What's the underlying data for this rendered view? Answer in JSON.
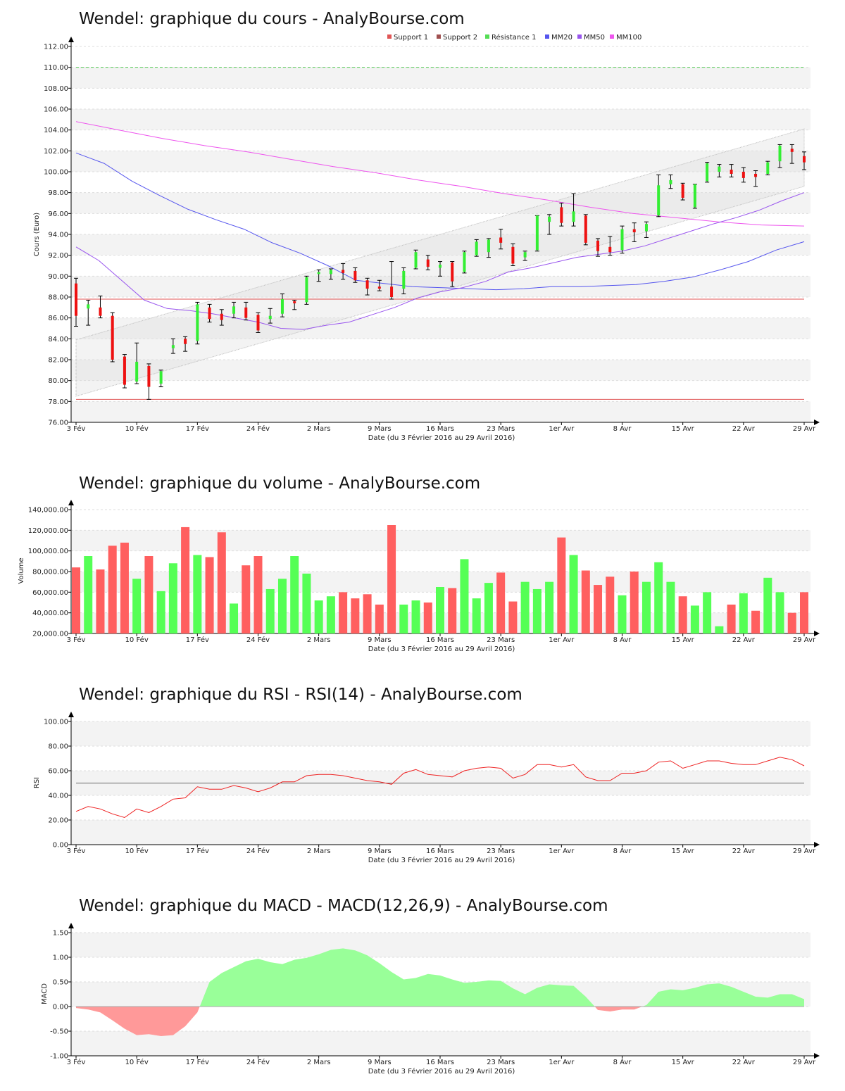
{
  "charts": {
    "price": {
      "title": "Wendel: graphique du cours - AnalyBourse.com",
      "ylabel": "Cours (Euro)",
      "xlabel": "Date (du 3 Février 2016 au 29 Avril 2016)"
    },
    "volume": {
      "title": "Wendel: graphique du volume - AnalyBourse.com",
      "ylabel": "Volume",
      "xlabel": "Date (du 3 Février 2016 au 29 Avril 2016)"
    },
    "rsi": {
      "title": "Wendel: graphique du RSI - RSI(14) - AnalyBourse.com",
      "ylabel": "RSI",
      "xlabel": "Date (du 3 Février 2016 au 29 Avril 2016)"
    },
    "macd": {
      "title": "Wendel: graphique du MACD - MACD(12,26,9) - AnalyBourse.com",
      "ylabel": "MACD",
      "xlabel": "Date (du 3 Février 2016 au 29 Avril 2016)"
    }
  },
  "legend": [
    {
      "label": "Support 1",
      "color": "#e05555"
    },
    {
      "label": "Support 2",
      "color": "#a05050"
    },
    {
      "label": "Résistance 1",
      "color": "#55dd55"
    },
    {
      "label": "MM20",
      "color": "#5555ee"
    },
    {
      "label": "MM50",
      "color": "#9955ee"
    },
    {
      "label": "MM100",
      "color": "#ee55ee"
    }
  ],
  "chart_data": [
    {
      "type": "candlestick",
      "x_ticks": [
        "3 Fév",
        "10 Fév",
        "17 Fév",
        "24 Fév",
        "2 Mars",
        "9 Mars",
        "16 Mars",
        "23 Mars",
        "1er Avr",
        "8 Avr",
        "15 Avr",
        "22 Avr",
        "29 Avr"
      ],
      "y_ticks": [
        "76.00",
        "78.00",
        "80.00",
        "82.00",
        "84.00",
        "86.00",
        "88.00",
        "90.00",
        "92.00",
        "94.00",
        "96.00",
        "98.00",
        "100.00",
        "102.00",
        "104.00",
        "106.00",
        "108.00",
        "110.00",
        "112.00"
      ],
      "ylim": [
        76,
        112
      ],
      "colors": {
        "up": "#33ee33",
        "down": "#ee1111"
      },
      "candles": [
        {
          "o": 89.3,
          "c": 86.2,
          "h": 89.8,
          "l": 85.2
        },
        {
          "o": 86.9,
          "c": 87.3,
          "h": 87.7,
          "l": 85.3
        },
        {
          "o": 87.0,
          "c": 86.2,
          "h": 88.1,
          "l": 86.0
        },
        {
          "o": 86.2,
          "c": 82.0,
          "h": 86.5,
          "l": 81.8
        },
        {
          "o": 82.3,
          "c": 79.6,
          "h": 82.5,
          "l": 79.3
        },
        {
          "o": 79.9,
          "c": 81.8,
          "h": 83.6,
          "l": 79.7
        },
        {
          "o": 81.4,
          "c": 79.4,
          "h": 81.6,
          "l": 78.2
        },
        {
          "o": 79.7,
          "c": 80.9,
          "h": 81.0,
          "l": 79.4
        },
        {
          "o": 83.1,
          "c": 83.4,
          "h": 84.0,
          "l": 82.6
        },
        {
          "o": 84.0,
          "c": 83.5,
          "h": 84.2,
          "l": 82.8
        },
        {
          "o": 83.8,
          "c": 87.3,
          "h": 87.5,
          "l": 83.5
        },
        {
          "o": 87.0,
          "c": 85.9,
          "h": 87.3,
          "l": 85.6
        },
        {
          "o": 86.4,
          "c": 85.8,
          "h": 86.8,
          "l": 85.3
        },
        {
          "o": 86.4,
          "c": 87.1,
          "h": 87.5,
          "l": 86.0
        },
        {
          "o": 87.0,
          "c": 86.0,
          "h": 87.5,
          "l": 85.8
        },
        {
          "o": 86.3,
          "c": 84.8,
          "h": 86.5,
          "l": 84.6
        },
        {
          "o": 85.9,
          "c": 86.2,
          "h": 86.9,
          "l": 85.5
        },
        {
          "o": 86.4,
          "c": 87.8,
          "h": 88.3,
          "l": 86.1
        },
        {
          "o": 87.6,
          "c": 87.4,
          "h": 87.7,
          "l": 86.8
        },
        {
          "o": 87.5,
          "c": 89.9,
          "h": 90.0,
          "l": 87.3
        },
        {
          "o": 90.2,
          "c": 90.4,
          "h": 90.6,
          "l": 89.5
        },
        {
          "o": 90.2,
          "c": 90.6,
          "h": 90.7,
          "l": 89.7
        },
        {
          "o": 90.6,
          "c": 90.3,
          "h": 91.2,
          "l": 89.7
        },
        {
          "o": 90.5,
          "c": 89.6,
          "h": 90.8,
          "l": 89.4
        },
        {
          "o": 89.6,
          "c": 88.8,
          "h": 89.8,
          "l": 88.2
        },
        {
          "o": 89.0,
          "c": 88.8,
          "h": 89.6,
          "l": 88.6
        },
        {
          "o": 89.0,
          "c": 88.0,
          "h": 91.4,
          "l": 87.8
        },
        {
          "o": 88.8,
          "c": 90.5,
          "h": 90.8,
          "l": 88.3
        },
        {
          "o": 90.8,
          "c": 92.3,
          "h": 92.5,
          "l": 90.7
        },
        {
          "o": 91.6,
          "c": 90.9,
          "h": 92.0,
          "l": 90.6
        },
        {
          "o": 90.8,
          "c": 91.1,
          "h": 91.4,
          "l": 90.0
        },
        {
          "o": 91.3,
          "c": 89.5,
          "h": 91.4,
          "l": 89.0
        },
        {
          "o": 90.4,
          "c": 92.3,
          "h": 92.4,
          "l": 90.3
        },
        {
          "o": 92.0,
          "c": 93.3,
          "h": 93.5,
          "l": 91.9
        },
        {
          "o": 92.3,
          "c": 93.5,
          "h": 93.6,
          "l": 91.8
        },
        {
          "o": 93.7,
          "c": 93.2,
          "h": 94.5,
          "l": 92.6
        },
        {
          "o": 92.8,
          "c": 91.2,
          "h": 93.1,
          "l": 91.0
        },
        {
          "o": 91.8,
          "c": 92.3,
          "h": 92.4,
          "l": 91.5
        },
        {
          "o": 92.5,
          "c": 95.8,
          "h": 95.8,
          "l": 92.4
        },
        {
          "o": 95.2,
          "c": 95.7,
          "h": 95.9,
          "l": 94.0
        },
        {
          "o": 96.6,
          "c": 95.1,
          "h": 97.0,
          "l": 94.8
        },
        {
          "o": 95.2,
          "c": 96.2,
          "h": 97.9,
          "l": 94.8
        },
        {
          "o": 95.8,
          "c": 93.2,
          "h": 95.9,
          "l": 93.0
        },
        {
          "o": 93.4,
          "c": 92.4,
          "h": 93.6,
          "l": 91.9
        },
        {
          "o": 92.8,
          "c": 92.3,
          "h": 93.8,
          "l": 92.0
        },
        {
          "o": 92.5,
          "c": 94.5,
          "h": 94.8,
          "l": 92.2
        },
        {
          "o": 94.5,
          "c": 94.2,
          "h": 95.1,
          "l": 93.3
        },
        {
          "o": 94.3,
          "c": 95.0,
          "h": 95.2,
          "l": 93.7
        },
        {
          "o": 95.8,
          "c": 98.7,
          "h": 99.7,
          "l": 95.7
        },
        {
          "o": 98.8,
          "c": 99.2,
          "h": 99.7,
          "l": 98.4
        },
        {
          "o": 98.8,
          "c": 97.5,
          "h": 98.9,
          "l": 97.3
        },
        {
          "o": 96.6,
          "c": 98.8,
          "h": 98.8,
          "l": 96.5
        },
        {
          "o": 99.1,
          "c": 100.8,
          "h": 100.9,
          "l": 99.0
        },
        {
          "o": 100.0,
          "c": 100.5,
          "h": 100.7,
          "l": 99.5
        },
        {
          "o": 100.2,
          "c": 99.8,
          "h": 100.7,
          "l": 99.5
        },
        {
          "o": 100.0,
          "c": 99.4,
          "h": 100.4,
          "l": 99.0
        },
        {
          "o": 99.8,
          "c": 99.5,
          "h": 100.1,
          "l": 98.6
        },
        {
          "o": 99.8,
          "c": 100.9,
          "h": 101.0,
          "l": 99.7
        },
        {
          "o": 101.0,
          "c": 102.5,
          "h": 102.6,
          "l": 100.4
        },
        {
          "o": 102.2,
          "c": 101.9,
          "h": 102.6,
          "l": 100.8
        },
        {
          "o": 101.5,
          "c": 100.9,
          "h": 101.9,
          "l": 100.2
        }
      ],
      "support_1": 87.8,
      "support_2": 78.2,
      "resistance_1": 110.0,
      "channel": {
        "upper": [
          83.9,
          104.1
        ],
        "lower": [
          78.5,
          98.6
        ]
      },
      "mm20": [
        92.8,
        91.5,
        89.6,
        87.7,
        86.9,
        86.7,
        86.4,
        86.0,
        85.6,
        85.0,
        84.9,
        85.3,
        85.6,
        86.3,
        87.0,
        87.9,
        88.5,
        88.9,
        89.5,
        90.4,
        90.8,
        91.3,
        91.8,
        92.1,
        92.4,
        92.9,
        93.6,
        94.3,
        95.0,
        95.6,
        96.3,
        97.2,
        98.0
      ],
      "mm50": [
        101.8,
        100.8,
        99.1,
        97.7,
        96.4,
        95.4,
        94.5,
        93.2,
        92.2,
        91.0,
        89.6,
        89.3,
        89.0,
        88.9,
        88.8,
        88.7,
        88.8,
        89.0,
        89.0,
        89.1,
        89.2,
        89.5,
        89.9,
        90.6,
        91.4,
        92.5,
        93.3
      ],
      "mm100": [
        104.8,
        104.0,
        103.2,
        102.5,
        101.9,
        101.2,
        100.5,
        99.9,
        99.2,
        98.6,
        97.9,
        97.3,
        96.6,
        96.0,
        95.6,
        95.2,
        94.9,
        94.8
      ]
    },
    {
      "type": "bar",
      "x_ticks": [
        "3 Fév",
        "10 Fév",
        "17 Fév",
        "24 Fév",
        "2 Mars",
        "9 Mars",
        "16 Mars",
        "23 Mars",
        "1er Avr",
        "8 Avr",
        "15 Avr",
        "22 Avr",
        "29 Avr"
      ],
      "y_ticks": [
        "20,000.00",
        "40,000.00",
        "60,000.00",
        "80,000.00",
        "100,000.00",
        "120,000.00",
        "140,000.00"
      ],
      "ylim": [
        20000,
        140000
      ],
      "colors": {
        "up": "#55ff55",
        "down": "#ff5f5f"
      },
      "values": [
        84000,
        95000,
        82000,
        105000,
        108000,
        73000,
        95000,
        61000,
        88000,
        123000,
        96000,
        94000,
        118000,
        49000,
        86000,
        95000,
        63000,
        73000,
        95000,
        78000,
        52000,
        56000,
        60000,
        54000,
        58000,
        48000,
        125000,
        48000,
        52000,
        50000,
        65000,
        64000,
        92000,
        54000,
        69000,
        79000,
        51000,
        70000,
        63000,
        70000,
        113000,
        96000,
        81000,
        67000,
        75000,
        57000,
        80000,
        70000,
        89000,
        70000,
        56000,
        47000,
        60000,
        27000,
        48000,
        59000,
        42000,
        74000,
        60000,
        40000,
        60000
      ],
      "directions": [
        "down",
        "up",
        "down",
        "down",
        "down",
        "up",
        "down",
        "up",
        "up",
        "down",
        "up",
        "down",
        "down",
        "up",
        "down",
        "down",
        "up",
        "up",
        "up",
        "up",
        "up",
        "up",
        "down",
        "down",
        "down",
        "down",
        "down",
        "up",
        "up",
        "down",
        "up",
        "down",
        "up",
        "up",
        "up",
        "down",
        "down",
        "up",
        "up",
        "up",
        "down",
        "up",
        "down",
        "down",
        "down",
        "up",
        "down",
        "up",
        "up",
        "up",
        "down",
        "up",
        "up",
        "up",
        "down",
        "up",
        "down",
        "up",
        "up",
        "down",
        "down"
      ]
    },
    {
      "type": "line",
      "x_ticks": [
        "3 Fév",
        "10 Fév",
        "17 Fév",
        "24 Fév",
        "2 Mars",
        "9 Mars",
        "16 Mars",
        "23 Mars",
        "1er Avr",
        "8 Avr",
        "15 Avr",
        "22 Avr",
        "29 Avr"
      ],
      "y_ticks": [
        "0.00",
        "20.00",
        "40.00",
        "60.00",
        "80.00",
        "100.00"
      ],
      "ylim": [
        0,
        100
      ],
      "reference_line": 50,
      "values": [
        27,
        31,
        29,
        25,
        22,
        29,
        26,
        31,
        37,
        38,
        47,
        45,
        45,
        48,
        46,
        43,
        46,
        51,
        51,
        56,
        57,
        57,
        56,
        54,
        52,
        51,
        49,
        58,
        61,
        57,
        56,
        55,
        60,
        62,
        63,
        62,
        54,
        57,
        65,
        65,
        63,
        65,
        55,
        52,
        52,
        58,
        58,
        60,
        67,
        68,
        62,
        65,
        68,
        68,
        66,
        65,
        65,
        68,
        71,
        69,
        64
      ]
    },
    {
      "type": "area",
      "x_ticks": [
        "3 Fév",
        "10 Fév",
        "17 Fév",
        "24 Fév",
        "2 Mars",
        "9 Mars",
        "16 Mars",
        "23 Mars",
        "1er Avr",
        "8 Avr",
        "15 Avr",
        "22 Avr",
        "29 Avr"
      ],
      "y_ticks": [
        "-1.00",
        "-0.50",
        "0.00",
        "0.50",
        "1.00",
        "1.50"
      ],
      "ylim": [
        -1,
        1.5
      ],
      "colors": {
        "positive": "#99ff99",
        "negative": "#ff9999"
      },
      "values": [
        -0.03,
        -0.06,
        -0.12,
        -0.28,
        -0.45,
        -0.58,
        -0.56,
        -0.6,
        -0.58,
        -0.4,
        -0.12,
        0.5,
        0.68,
        0.8,
        0.92,
        0.97,
        0.9,
        0.86,
        0.95,
        0.99,
        1.06,
        1.15,
        1.18,
        1.14,
        1.04,
        0.88,
        0.7,
        0.55,
        0.58,
        0.66,
        0.63,
        0.55,
        0.48,
        0.5,
        0.53,
        0.52,
        0.37,
        0.25,
        0.38,
        0.45,
        0.43,
        0.42,
        0.2,
        -0.07,
        -0.1,
        -0.06,
        -0.06,
        0.03,
        0.3,
        0.35,
        0.33,
        0.38,
        0.45,
        0.47,
        0.4,
        0.3,
        0.2,
        0.18,
        0.25,
        0.25,
        0.15
      ]
    }
  ]
}
